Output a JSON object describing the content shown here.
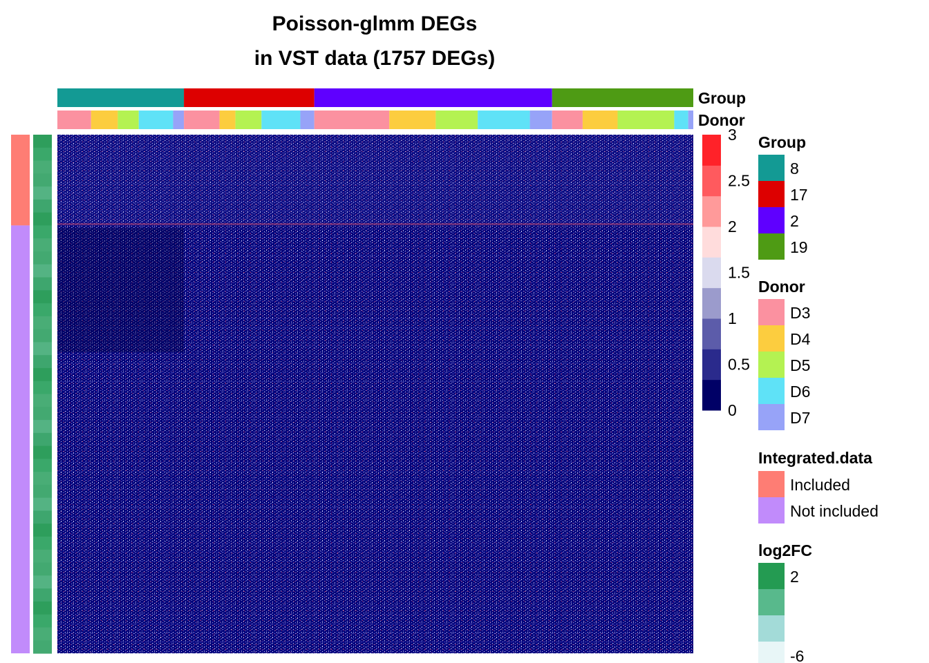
{
  "chart_data": {
    "type": "heatmap",
    "title_lines": [
      "Poisson-glmm DEGs",
      "in VST data (1757 DEGs)"
    ],
    "n_genes": 1757,
    "column_annotations": {
      "group": {
        "name": "Group",
        "segments": [
          {
            "value": "8",
            "fraction": 0.199
          },
          {
            "value": "17",
            "fraction": 0.205
          },
          {
            "value": "2",
            "fraction": 0.374
          },
          {
            "value": "19",
            "fraction": 0.222
          }
        ]
      },
      "donor": {
        "name": "Donor",
        "segments": [
          {
            "value": "D3",
            "fraction": 0.053
          },
          {
            "value": "D4",
            "fraction": 0.042
          },
          {
            "value": "D5",
            "fraction": 0.033
          },
          {
            "value": "D6",
            "fraction": 0.054
          },
          {
            "value": "D7",
            "fraction": 0.017
          },
          {
            "value": "D3",
            "fraction": 0.056
          },
          {
            "value": "D4",
            "fraction": 0.025
          },
          {
            "value": "D5",
            "fraction": 0.041
          },
          {
            "value": "D6",
            "fraction": 0.061
          },
          {
            "value": "D7",
            "fraction": 0.022
          },
          {
            "value": "D3",
            "fraction": 0.118
          },
          {
            "value": "D4",
            "fraction": 0.073
          },
          {
            "value": "D5",
            "fraction": 0.066
          },
          {
            "value": "D6",
            "fraction": 0.082
          },
          {
            "value": "D7",
            "fraction": 0.035
          },
          {
            "value": "D3",
            "fraction": 0.048
          },
          {
            "value": "D4",
            "fraction": 0.055
          },
          {
            "value": "D5",
            "fraction": 0.089
          },
          {
            "value": "D6",
            "fraction": 0.022
          },
          {
            "value": "D7",
            "fraction": 0.008
          }
        ]
      }
    },
    "row_annotations": {
      "integrated": {
        "name": "Integrated.data",
        "segments": [
          {
            "value": "Included",
            "fraction": 0.175
          },
          {
            "value": "Not included",
            "fraction": 0.825
          }
        ]
      },
      "log2fc": {
        "name": "log2FC",
        "range": [
          -6,
          2
        ]
      }
    },
    "color_scale": {
      "min": 0,
      "max": 3,
      "ticks": [
        "3",
        "2.5",
        "2",
        "1.5",
        "1",
        "0.5",
        "0"
      ],
      "colors": [
        "#000066",
        "#2a2a8c",
        "#5c5caa",
        "#9b9bcc",
        "#dadaee",
        "#ffdcdc",
        "#ff9a9a",
        "#ff5a5e",
        "#ff2229"
      ]
    },
    "value_distribution_note": "",
    "legends": {
      "group": {
        "title": "Group",
        "items": [
          {
            "label": "8",
            "color": "#139a94"
          },
          {
            "label": "17",
            "color": "#dd0000"
          },
          {
            "label": "2",
            "color": "#5f00ff"
          },
          {
            "label": "19",
            "color": "#4e9b14"
          }
        ]
      },
      "donor": {
        "title": "Donor",
        "items": [
          {
            "label": "D3",
            "color": "#fb91a0"
          },
          {
            "label": "D4",
            "color": "#fccd3f"
          },
          {
            "label": "D5",
            "color": "#b4f252"
          },
          {
            "label": "D6",
            "color": "#5fe2f7"
          },
          {
            "label": "D7",
            "color": "#97a3f8"
          }
        ]
      },
      "integrated": {
        "title": "Integrated.data",
        "items": [
          {
            "label": "Included",
            "color": "#fe7d74"
          },
          {
            "label": "Not included",
            "color": "#c18bfb"
          }
        ]
      },
      "log2fc": {
        "title": "log2FC",
        "labels": [
          "2",
          "-6"
        ],
        "colors": [
          "#249b52",
          "#58b98c",
          "#a3dbd8",
          "#e8f6f7"
        ]
      }
    }
  }
}
